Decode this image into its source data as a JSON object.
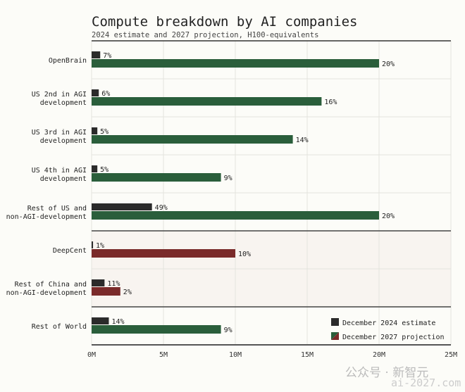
{
  "chart_data": {
    "type": "bar",
    "orientation": "horizontal",
    "title": "Compute breakdown by AI companies",
    "subtitle": "2024 estimate and 2027 projection, H100-equivalents",
    "categories": [
      "OpenBrain",
      "US 2nd in AGI development",
      "US 3rd in AGI development",
      "US 4th in AGI development",
      "Rest of US and non-AGI-development",
      "DeepCent",
      "Rest of China and non-AGI-development",
      "Rest of World"
    ],
    "category_lines": [
      [
        "OpenBrain"
      ],
      [
        "US 2nd in AGI",
        "development"
      ],
      [
        "US 3rd in AGI",
        "development"
      ],
      [
        "US 4th in AGI",
        "development"
      ],
      [
        "Rest of US and",
        "non-AGI-development"
      ],
      [
        "DeepCent"
      ],
      [
        "Rest of China and",
        "non-AGI-development"
      ],
      [
        "Rest of World"
      ]
    ],
    "region": [
      "US",
      "US",
      "US",
      "US",
      "US",
      "China",
      "China",
      "World"
    ],
    "series": [
      {
        "name": "December 2024 estimate",
        "values": [
          0.6,
          0.5,
          0.4,
          0.4,
          4.2,
          0.1,
          0.9,
          1.2
        ],
        "labels": [
          "7%",
          "6%",
          "5%",
          "5%",
          "49%",
          "1%",
          "11%",
          "14%"
        ]
      },
      {
        "name": "December 2027 projection",
        "values": [
          20,
          16,
          14,
          9,
          20,
          10,
          2,
          9
        ],
        "labels": [
          "20%",
          "16%",
          "14%",
          "9%",
          "20%",
          "10%",
          "2%",
          "9%"
        ]
      }
    ],
    "xunit": "M",
    "xlim": [
      0,
      25
    ],
    "xticks": [
      "0M",
      "5M",
      "10M",
      "15M",
      "20M",
      "25M"
    ],
    "grid": true,
    "legend": "bottom-right",
    "colors": {
      "estimate": "#2b2b2b",
      "projection_us": "#2a5e3b",
      "projection_china": "#7a2a2a",
      "china_bg": "#f8f4f0"
    }
  },
  "watermark": {
    "line1": "公众号 · 新智元",
    "line2": "ai-2027.com"
  }
}
